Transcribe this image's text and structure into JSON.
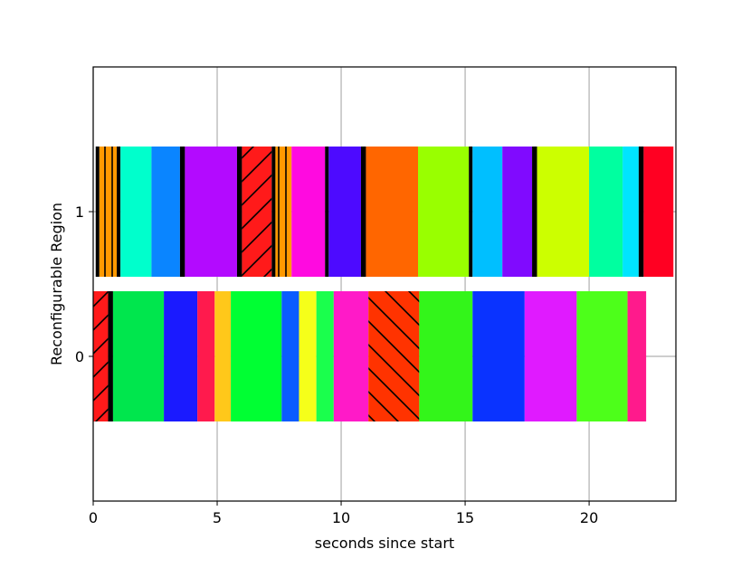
{
  "chart_data": {
    "type": "timeline",
    "xlabel": "seconds since start",
    "ylabel": "Reconfigurable Region",
    "xlim": [
      0,
      23.5
    ],
    "ylim": [
      -1,
      2
    ],
    "xticks": [
      0,
      5,
      10,
      15,
      20
    ],
    "yticks": [
      0,
      1
    ],
    "grid": true,
    "bar_height": 0.9,
    "rows": [
      {
        "y": 0,
        "segments": [
          {
            "start": 0.0,
            "end": 0.6,
            "color": "#ff1a1a",
            "hatch": "/"
          },
          {
            "start": 0.6,
            "end": 0.8,
            "color": "#000000"
          },
          {
            "start": 0.8,
            "end": 2.85,
            "color": "#00e64d"
          },
          {
            "start": 2.85,
            "end": 4.2,
            "color": "#1a1aff"
          },
          {
            "start": 4.2,
            "end": 4.9,
            "color": "#ff1a4d"
          },
          {
            "start": 4.9,
            "end": 5.55,
            "color": "#ffc81a"
          },
          {
            "start": 5.55,
            "end": 7.6,
            "color": "#00ff33"
          },
          {
            "start": 7.6,
            "end": 8.3,
            "color": "#0a5cff"
          },
          {
            "start": 8.3,
            "end": 9.0,
            "color": "#f5ff1a"
          },
          {
            "start": 9.0,
            "end": 9.7,
            "color": "#1aff4d"
          },
          {
            "start": 9.7,
            "end": 11.1,
            "color": "#ff1ac8"
          },
          {
            "start": 11.1,
            "end": 13.15,
            "color": "#ff3300",
            "hatch": "\\"
          },
          {
            "start": 13.15,
            "end": 15.3,
            "color": "#33f51a"
          },
          {
            "start": 15.3,
            "end": 17.4,
            "color": "#0a33ff"
          },
          {
            "start": 17.4,
            "end": 19.5,
            "color": "#e01aff"
          },
          {
            "start": 19.5,
            "end": 21.55,
            "color": "#4dff1a"
          },
          {
            "start": 21.55,
            "end": 22.3,
            "color": "#ff1a8c"
          }
        ]
      },
      {
        "y": 1,
        "segments": [
          {
            "start": 0.1,
            "end": 0.25,
            "color": "#000000"
          },
          {
            "start": 0.25,
            "end": 0.95,
            "color": "#ff9900",
            "hatch": "|"
          },
          {
            "start": 0.95,
            "end": 1.1,
            "color": "#000000"
          },
          {
            "start": 1.1,
            "end": 2.35,
            "color": "#00ffcc"
          },
          {
            "start": 2.35,
            "end": 3.5,
            "color": "#0a85ff"
          },
          {
            "start": 3.5,
            "end": 3.7,
            "color": "#000000"
          },
          {
            "start": 3.7,
            "end": 5.8,
            "color": "#b30aff"
          },
          {
            "start": 5.8,
            "end": 6.0,
            "color": "#000000"
          },
          {
            "start": 6.0,
            "end": 7.2,
            "color": "#ff1a1a",
            "hatch": "/"
          },
          {
            "start": 7.2,
            "end": 7.35,
            "color": "#000000"
          },
          {
            "start": 7.35,
            "end": 8.0,
            "color": "#ff9900",
            "hatch": "|"
          },
          {
            "start": 8.0,
            "end": 9.35,
            "color": "#ff0ae0"
          },
          {
            "start": 9.35,
            "end": 9.5,
            "color": "#000000"
          },
          {
            "start": 9.5,
            "end": 10.8,
            "color": "#4d0aff"
          },
          {
            "start": 10.8,
            "end": 11.0,
            "color": "#000000"
          },
          {
            "start": 11.0,
            "end": 13.1,
            "color": "#ff6600"
          },
          {
            "start": 13.1,
            "end": 15.15,
            "color": "#99ff00"
          },
          {
            "start": 15.15,
            "end": 15.3,
            "color": "#000000"
          },
          {
            "start": 15.3,
            "end": 16.5,
            "color": "#00bfff"
          },
          {
            "start": 16.5,
            "end": 17.7,
            "color": "#800aff"
          },
          {
            "start": 17.7,
            "end": 17.9,
            "color": "#000000"
          },
          {
            "start": 17.9,
            "end": 20.0,
            "color": "#ccff00"
          },
          {
            "start": 20.0,
            "end": 21.35,
            "color": "#00ffa0"
          },
          {
            "start": 21.35,
            "end": 22.0,
            "color": "#00e5ff"
          },
          {
            "start": 22.0,
            "end": 22.2,
            "color": "#000000"
          },
          {
            "start": 22.2,
            "end": 23.4,
            "color": "#ff0022"
          }
        ]
      }
    ]
  }
}
